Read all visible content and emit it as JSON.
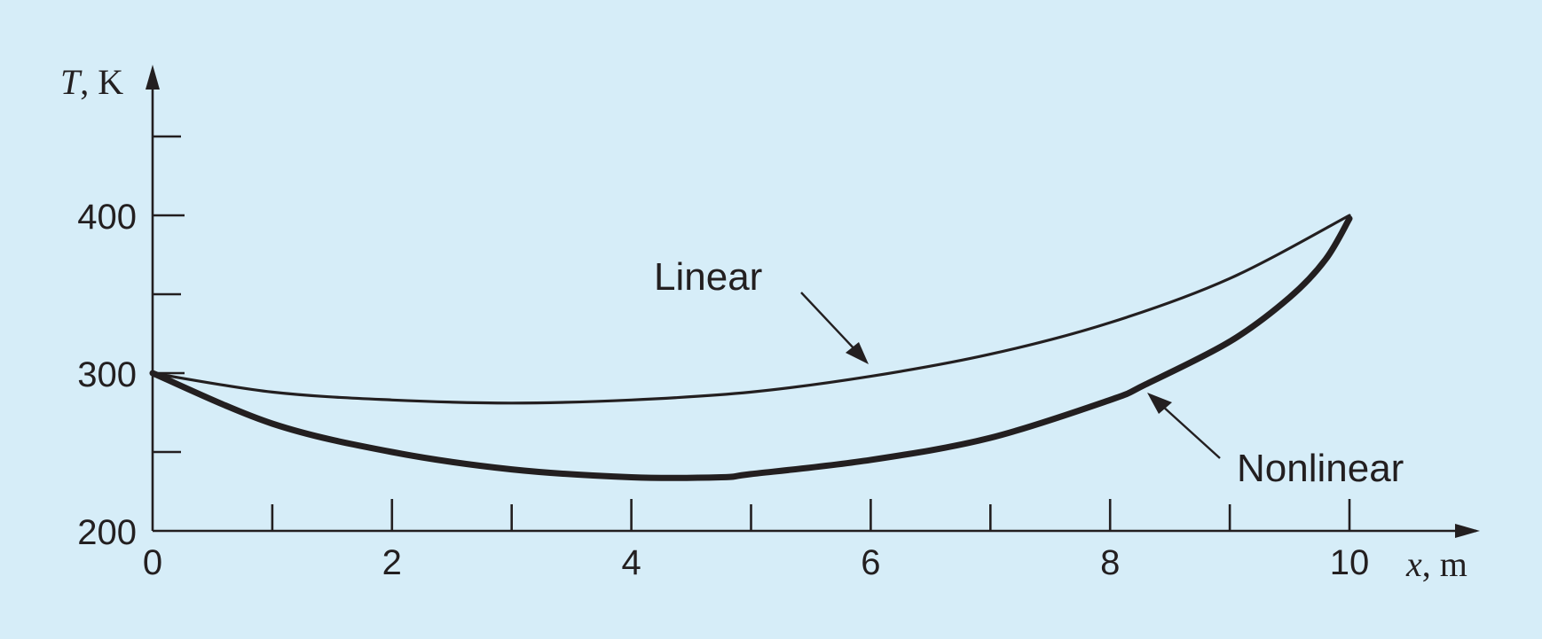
{
  "chart_data": {
    "type": "line",
    "xlabel_var": "x",
    "xlabel_unit": ", m",
    "ylabel_var": "T",
    "ylabel_unit": ", K",
    "xlim": [
      0,
      11
    ],
    "ylim": [
      200,
      460
    ],
    "x_ticks_labeled": [
      0,
      2,
      4,
      6,
      8,
      10
    ],
    "x_ticks_labels": [
      "0",
      "2",
      "4",
      "6",
      "8",
      "10"
    ],
    "y_ticks_labeled": [
      200,
      300,
      400
    ],
    "y_ticks_labels": [
      "200",
      "300",
      "400"
    ],
    "x_minor_ticks": [
      1,
      3,
      5,
      7,
      9
    ],
    "y_minor_ticks": [
      250,
      350,
      450
    ],
    "grid": false,
    "legend": "none",
    "series": [
      {
        "name": "Linear",
        "stroke": "thin",
        "x": [
          0,
          1,
          2,
          3,
          4,
          5,
          6,
          7,
          8,
          9,
          10
        ],
        "y": [
          300,
          288,
          283,
          281,
          283,
          288,
          298,
          312,
          332,
          360,
          400
        ]
      },
      {
        "name": "Nonlinear",
        "stroke": "thick",
        "x": [
          0,
          1,
          2,
          3,
          4,
          4.75,
          5,
          6,
          7,
          8,
          8.3,
          9,
          9.5,
          9.8,
          10
        ],
        "y": [
          300,
          268,
          250,
          239,
          234,
          234,
          236,
          245,
          259,
          283,
          293,
          320,
          348,
          372,
          398
        ]
      }
    ],
    "annotations": [
      {
        "text": "Linear",
        "points_to_series": "Linear"
      },
      {
        "text": "Nonlinear",
        "points_to_series": "Nonlinear"
      }
    ],
    "colors": {
      "background": "#d6edf8",
      "ink": "#231f20"
    }
  }
}
